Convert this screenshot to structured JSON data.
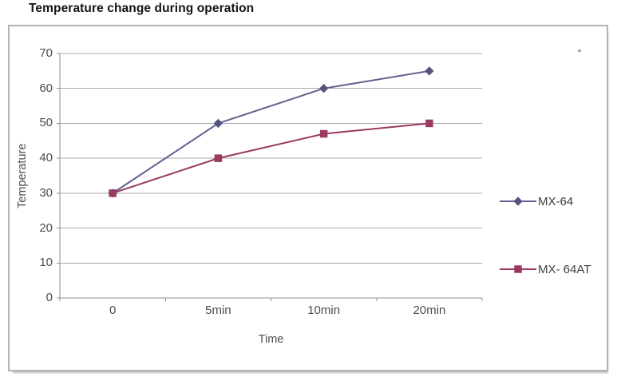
{
  "page": {
    "title": "Temperature change during operation"
  },
  "chart_data": {
    "type": "line",
    "title": "Temperature change during operation",
    "xlabel": "Time",
    "ylabel": "Temperature",
    "categories": [
      "0",
      "5min",
      "10min",
      "20min"
    ],
    "yticks": [
      0,
      10,
      20,
      30,
      40,
      50,
      60,
      70
    ],
    "ylim": [
      0,
      70
    ],
    "grid": true,
    "legend_position": "right",
    "series": [
      {
        "name": "MX-64",
        "marker": "diamond",
        "color": "#62628e",
        "marker_color": "#54547f",
        "values": [
          30,
          50,
          60,
          65
        ]
      },
      {
        "name": "MX- 64AT",
        "marker": "square",
        "color": "#9a3a60",
        "marker_color": "#9a3a60",
        "values": [
          30,
          40,
          47,
          50
        ]
      }
    ]
  },
  "colors": {
    "gridline": "#a9a9a9",
    "axis": "#8f8f8f",
    "tick_text": "#4d4d4d",
    "title_text": "#141414",
    "box_border": "#b3b3b3"
  }
}
